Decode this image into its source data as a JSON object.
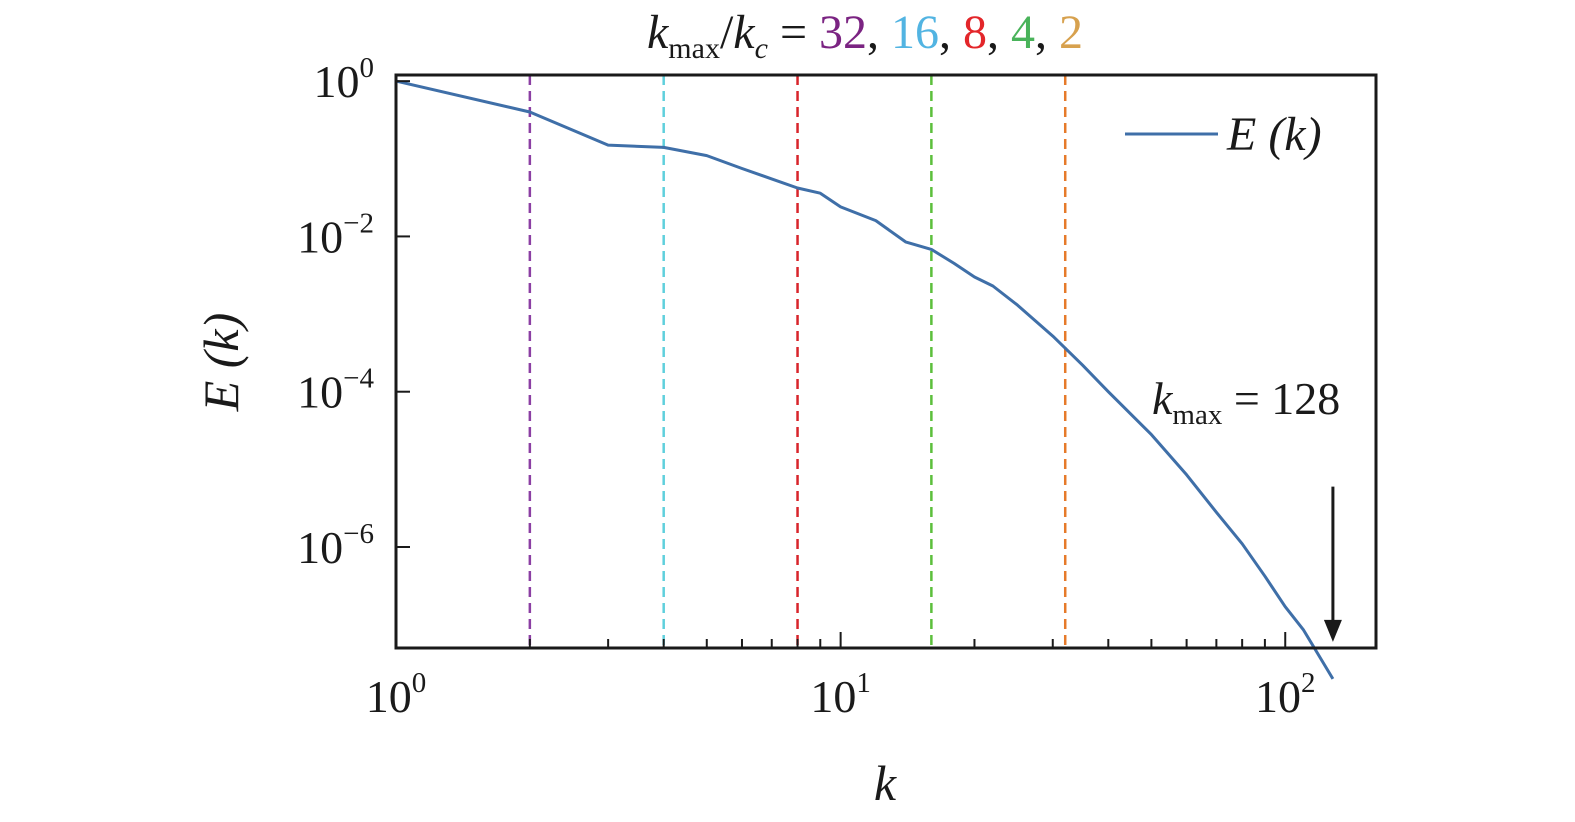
{
  "chart_data": {
    "type": "line",
    "title": {
      "prefix_var": "k",
      "prefix_sub": "max",
      "prefix_sep": "/",
      "den_var": "k",
      "den_sub": "c",
      "equals": " = ",
      "separator": ", ",
      "values": [
        {
          "text": "32",
          "color": "#7b2482"
        },
        {
          "text": "16",
          "color": "#52b4e2"
        },
        {
          "text": "8",
          "color": "#e3262a"
        },
        {
          "text": "4",
          "color": "#49b35a"
        },
        {
          "text": "2",
          "color": "#d7a14e"
        }
      ]
    },
    "xlabel": "k",
    "ylabel": "E (k)",
    "xscale": "log",
    "yscale": "log",
    "xlim": [
      1,
      160
    ],
    "ylim": [
      5e-08,
      1.2
    ],
    "xticks": [
      {
        "value": 1,
        "base": "10",
        "exp": "0"
      },
      {
        "value": 10,
        "base": "10",
        "exp": "1"
      },
      {
        "value": 100,
        "base": "10",
        "exp": "2"
      }
    ],
    "yticks": [
      {
        "value": 1,
        "base": "10",
        "exp": "0"
      },
      {
        "value": 0.01,
        "base": "10",
        "exp": "−2"
      },
      {
        "value": 0.0001,
        "base": "10",
        "exp": "−4"
      },
      {
        "value": 1e-06,
        "base": "10",
        "exp": "−6"
      }
    ],
    "grid": false,
    "legend": {
      "position": "top-right",
      "label": "E (k)"
    },
    "series": [
      {
        "name": "E (k)",
        "color": "#3f6fa8",
        "x": [
          1,
          2,
          3,
          4,
          5,
          6,
          7,
          8,
          9,
          10,
          12,
          14,
          16,
          18,
          20,
          22,
          25,
          30,
          35,
          40,
          50,
          60,
          70,
          80,
          90,
          100,
          110,
          128
        ],
        "y": [
          1.0,
          0.4,
          0.15,
          0.14,
          0.11,
          0.075,
          0.055,
          0.042,
          0.036,
          0.024,
          0.016,
          0.0085,
          0.0068,
          0.0045,
          0.003,
          0.0023,
          0.0013,
          0.00052,
          0.00022,
          0.0001,
          2.8e-05,
          8.5e-06,
          2.8e-06,
          1.1e-06,
          4.2e-07,
          1.7e-07,
          8.5e-08,
          2e-08
        ]
      }
    ],
    "vlines": [
      {
        "x": 2,
        "color": "#8b3fa3"
      },
      {
        "x": 4,
        "color": "#5fd0dc"
      },
      {
        "x": 8,
        "color": "#d8242b"
      },
      {
        "x": 16,
        "color": "#5cbf3c"
      },
      {
        "x": 32,
        "color": "#e67a2a"
      }
    ],
    "annotation": {
      "var": "k",
      "sub": "max",
      "rest": " = 128",
      "arrow_x": 128,
      "arrow_y_top": 6e-06,
      "arrow_y_bottom": 6e-08
    }
  }
}
